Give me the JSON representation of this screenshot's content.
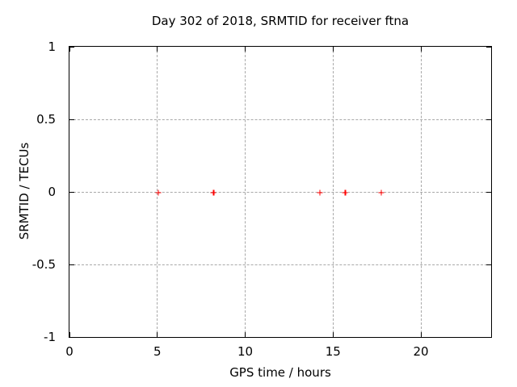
{
  "chart_data": {
    "type": "scatter",
    "title": "Day 302 of 2018, SRMTID for receiver ftna",
    "xlabel": "GPS time / hours",
    "ylabel": "SRMTID / TECUs",
    "xlim": [
      0,
      24
    ],
    "ylim": [
      -1,
      1
    ],
    "x_ticks": [
      0,
      5,
      10,
      15,
      20
    ],
    "y_ticks": [
      -1,
      -0.5,
      0,
      0.5,
      1
    ],
    "grid": true,
    "legend": "none",
    "series": [
      {
        "name": "SRMTID",
        "marker": "plus",
        "color": "#ff0000",
        "x": [
          5.05,
          8.2,
          14.25,
          15.7,
          17.75
        ],
        "y": [
          -0.005,
          -0.005,
          -0.005,
          -0.005,
          -0.005
        ]
      }
    ],
    "colors": {
      "axis": "#000000",
      "grid": "#a8a8a8",
      "marker": "#ff0000",
      "background": "#ffffff"
    }
  }
}
